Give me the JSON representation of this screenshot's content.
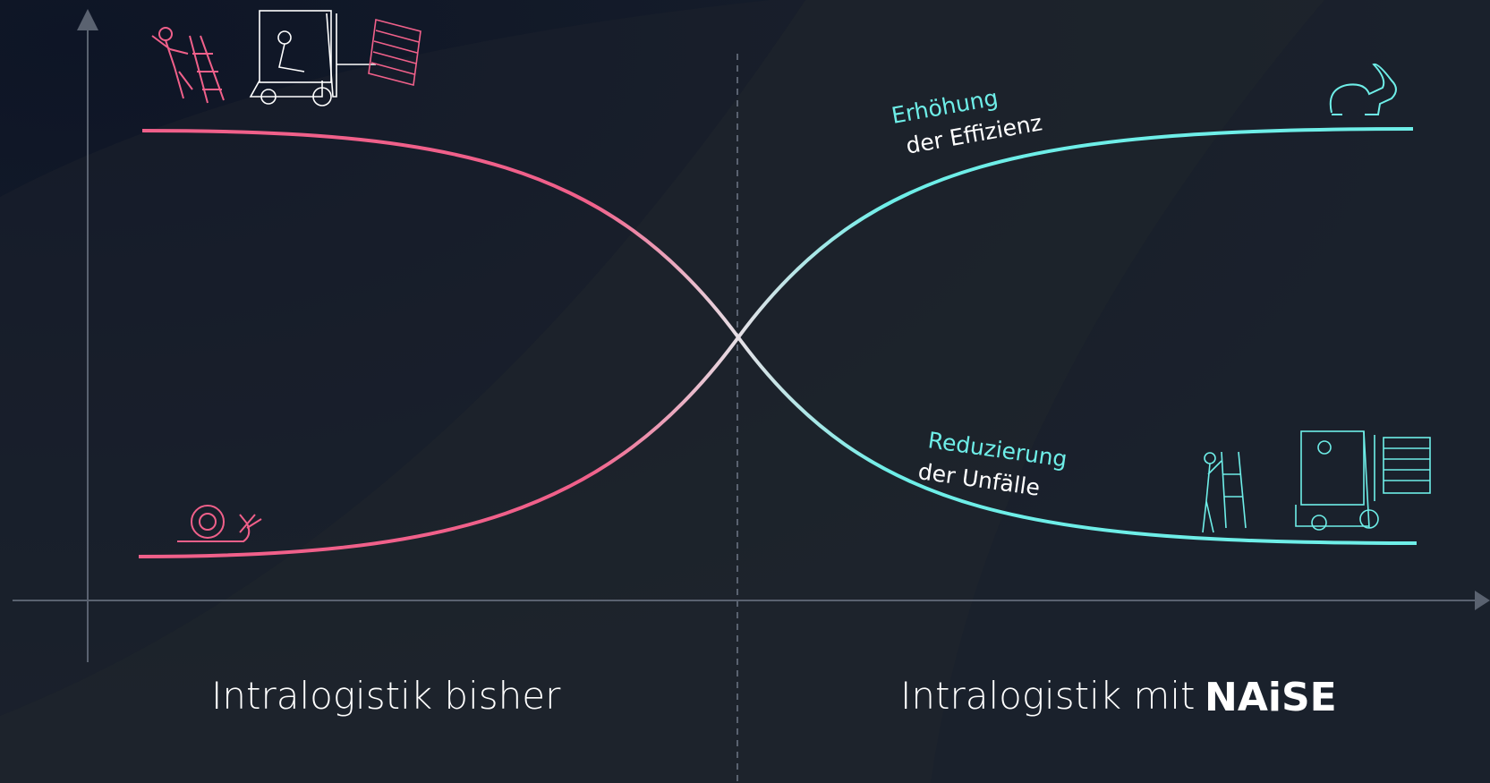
{
  "labels": {
    "efficiency_top": "Erhöhung",
    "efficiency_bottom": "der Effizienz",
    "accidents_top": "Reduzierung",
    "accidents_bottom": "der Unfälle",
    "left_caption": "Intralogistik bisher",
    "right_caption": "Intralogistik mit",
    "logo": "NAiSE"
  }
}
